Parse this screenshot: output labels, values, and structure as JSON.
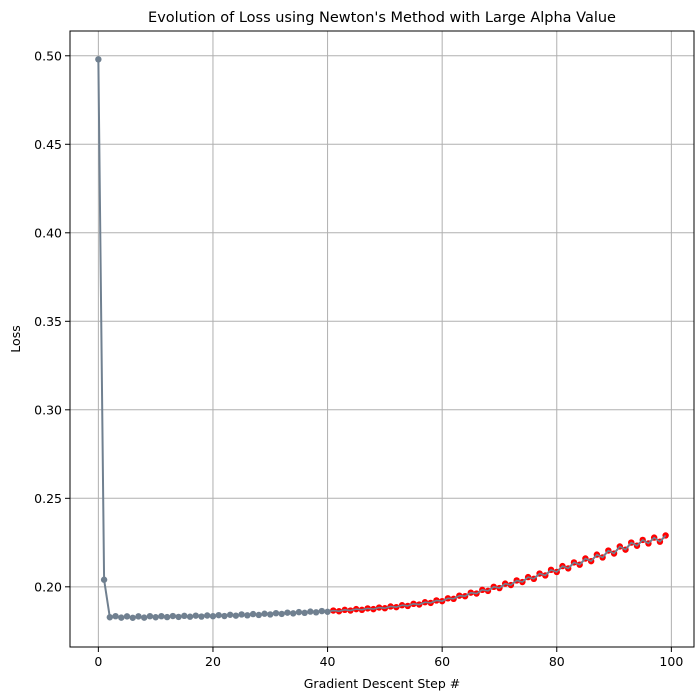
{
  "chart_data": {
    "type": "line",
    "title": "Evolution of Loss using Newton's Method with Large Alpha Value",
    "xlabel": "Gradient Descent Step #",
    "ylabel": "Loss",
    "xlim": [
      -4.95,
      103.95
    ],
    "ylim": [
      0.166,
      0.514
    ],
    "xticks": [
      0,
      20,
      40,
      60,
      80,
      100
    ],
    "xtick_labels": [
      "0",
      "20",
      "40",
      "60",
      "80",
      "100"
    ],
    "yticks": [
      0.2,
      0.25,
      0.3,
      0.35,
      0.4,
      0.45,
      0.5
    ],
    "ytick_labels": [
      "0.20",
      "0.25",
      "0.30",
      "0.35",
      "0.40",
      "0.45",
      "0.50"
    ],
    "grid": true,
    "colors": {
      "line": "#708090",
      "phase1_marker": "#708090",
      "phase2_marker": "#ff0000",
      "grid": "#b0b0b0",
      "axes": "#000000"
    },
    "phase_split_step": 40,
    "series": [
      {
        "x": [
          0,
          1,
          2,
          3,
          4,
          5,
          6,
          7,
          8,
          9,
          10,
          11,
          12,
          13,
          14,
          15,
          16,
          17,
          18,
          19,
          20,
          21,
          22,
          23,
          24,
          25,
          26,
          27,
          28,
          29,
          30,
          31,
          32,
          33,
          34,
          35,
          36,
          37,
          38,
          39,
          40,
          41,
          42,
          43,
          44,
          45,
          46,
          47,
          48,
          49,
          50,
          51,
          52,
          53,
          54,
          55,
          56,
          57,
          58,
          59,
          60,
          61,
          62,
          63,
          64,
          65,
          66,
          67,
          68,
          69,
          70,
          71,
          72,
          73,
          74,
          75,
          76,
          77,
          78,
          79,
          80,
          81,
          82,
          83,
          84,
          85,
          86,
          87,
          88,
          89,
          90,
          91,
          92,
          93,
          94,
          95,
          96,
          97,
          98,
          99
        ],
        "y": [
          0.498,
          0.204,
          0.1828,
          0.1834,
          0.1826,
          0.1833,
          0.1825,
          0.1833,
          0.1826,
          0.1834,
          0.1828,
          0.1834,
          0.1829,
          0.1835,
          0.183,
          0.1836,
          0.1831,
          0.1837,
          0.1832,
          0.1838,
          0.1834,
          0.184,
          0.1835,
          0.1842,
          0.1837,
          0.1844,
          0.1839,
          0.1846,
          0.1841,
          0.1848,
          0.1844,
          0.1851,
          0.1847,
          0.1854,
          0.185,
          0.1857,
          0.1853,
          0.186,
          0.1856,
          0.1863,
          0.1859,
          0.1866,
          0.1862,
          0.187,
          0.1866,
          0.1874,
          0.187,
          0.1878,
          0.1874,
          0.1883,
          0.1879,
          0.1889,
          0.1885,
          0.1896,
          0.1892,
          0.1904,
          0.19,
          0.1913,
          0.1909,
          0.1923,
          0.1919,
          0.1935,
          0.1932,
          0.195,
          0.1947,
          0.1967,
          0.1962,
          0.1983,
          0.1977,
          0.2,
          0.1993,
          0.2018,
          0.201,
          0.2036,
          0.2027,
          0.2055,
          0.2045,
          0.2075,
          0.2064,
          0.2096,
          0.2084,
          0.2117,
          0.2104,
          0.2138,
          0.2125,
          0.216,
          0.2145,
          0.2182,
          0.2166,
          0.2205,
          0.2188,
          0.2228,
          0.221,
          0.225,
          0.2232,
          0.2265,
          0.2245,
          0.2278,
          0.2255,
          0.229
        ]
      }
    ]
  }
}
